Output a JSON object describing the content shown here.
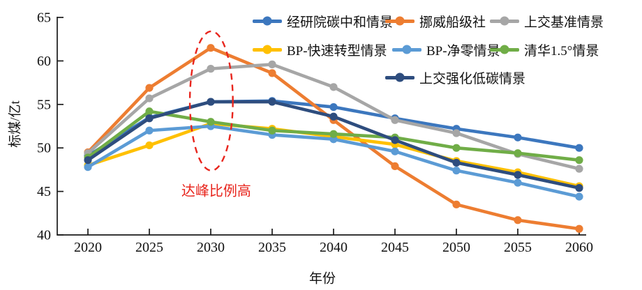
{
  "chart_data": {
    "type": "line",
    "title": "",
    "xlabel": "年份",
    "ylabel": "标煤/亿t",
    "x": [
      2020,
      2025,
      2030,
      2035,
      2040,
      2045,
      2050,
      2055,
      2060
    ],
    "xlim": [
      2017.5,
      2060.5
    ],
    "ylim": [
      40,
      65
    ],
    "yticks": [
      40,
      45,
      50,
      55,
      60,
      65
    ],
    "grid": false,
    "legend_position": "top-right-inside",
    "series": [
      {
        "name": "经研院碳中和情景",
        "color": "#3C77BE",
        "values": [
          49.1,
          53.5,
          55.3,
          55.4,
          54.7,
          53.4,
          52.2,
          51.2,
          50.0
        ]
      },
      {
        "name": "挪威船级社",
        "color": "#ED7D31",
        "values": [
          49.5,
          56.9,
          61.5,
          58.6,
          53.2,
          47.9,
          43.5,
          41.7,
          40.7
        ]
      },
      {
        "name": "上交基准情景",
        "color": "#A6A6A6",
        "values": [
          49.4,
          55.7,
          59.1,
          59.6,
          57.0,
          53.2,
          51.7,
          49.3,
          47.6
        ]
      },
      {
        "name": "BP-快速转型情景",
        "color": "#FFC000",
        "values": [
          48.0,
          50.3,
          52.8,
          52.2,
          51.3,
          50.4,
          48.5,
          47.2,
          45.6
        ]
      },
      {
        "name": "BP-净零情景",
        "color": "#5B9BD5",
        "values": [
          47.8,
          52.0,
          52.5,
          51.5,
          51.0,
          49.6,
          47.4,
          46.0,
          44.4
        ]
      },
      {
        "name": "清华1.5°情景",
        "color": "#70AD47",
        "values": [
          48.9,
          54.2,
          53.0,
          52.0,
          51.6,
          51.2,
          50.0,
          49.4,
          48.6
        ]
      },
      {
        "name": "上交强化低碳情景",
        "color": "#2E4D7E",
        "values": [
          48.6,
          53.4,
          55.3,
          55.3,
          53.6,
          50.9,
          48.3,
          46.9,
          45.4
        ]
      }
    ],
    "annotation": {
      "label": "达峰比例高",
      "color": "#E8251D",
      "ellipse": {
        "center_year": 2030.05,
        "center_value": 55.4,
        "rx_years": 1.75,
        "ry_units": 8.0
      },
      "label_year": 2030.45,
      "label_value": 45.1
    }
  }
}
